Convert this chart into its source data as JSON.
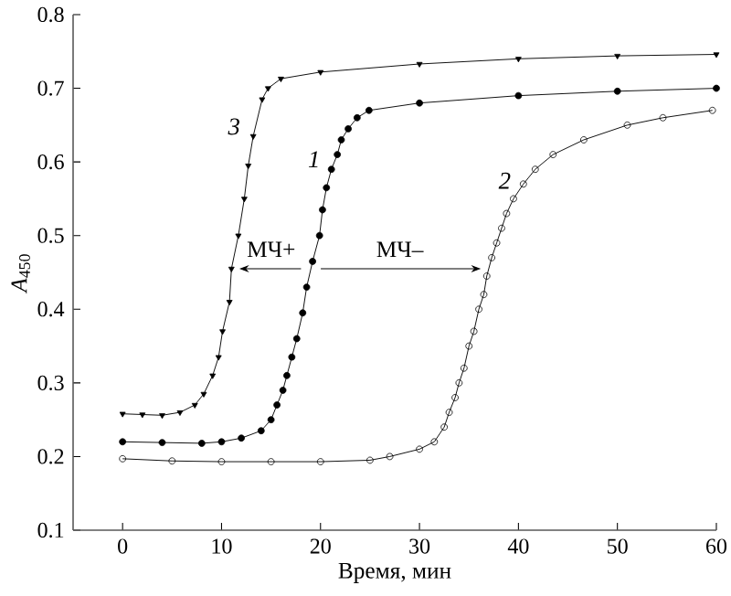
{
  "chart_data": {
    "type": "line",
    "xlabel": "Время, мин",
    "ylabel": "*A*$_{450}$",
    "xlim": [
      -5,
      60
    ],
    "ylim": [
      0.1,
      0.8
    ],
    "xticks": [
      0,
      10,
      20,
      30,
      40,
      50,
      60
    ],
    "yticks": [
      0.1,
      0.2,
      0.3,
      0.4,
      0.5,
      0.6,
      0.7,
      0.8
    ],
    "grid": false,
    "legend": false,
    "line_style": "solid",
    "series": [
      {
        "name": "3",
        "color": "#000000",
        "marker": "triangle",
        "x": [
          0,
          2,
          4,
          5.8,
          7.3,
          8.2,
          9.1,
          9.7,
          10.1,
          10.8,
          11,
          11.7,
          12.3,
          12.7,
          13.2,
          14.1,
          14.7,
          16,
          20,
          30,
          40,
          50,
          60
        ],
        "values": [
          0.258,
          0.257,
          0.256,
          0.26,
          0.27,
          0.285,
          0.31,
          0.335,
          0.37,
          0.41,
          0.455,
          0.5,
          0.55,
          0.595,
          0.635,
          0.685,
          0.7,
          0.713,
          0.722,
          0.733,
          0.74,
          0.744,
          0.746
        ]
      },
      {
        "name": "1",
        "color": "#000000",
        "marker": "circle",
        "x": [
          0,
          4,
          8,
          10,
          12,
          14,
          15,
          15.6,
          16.2,
          16.6,
          17.1,
          17.6,
          18.2,
          18.6,
          19.2,
          19.9,
          20.2,
          20.6,
          21.1,
          21.7,
          22.1,
          22.8,
          23.7,
          24.9,
          30,
          40,
          50,
          60
        ],
        "values": [
          0.22,
          0.219,
          0.218,
          0.22,
          0.225,
          0.235,
          0.25,
          0.27,
          0.29,
          0.31,
          0.335,
          0.36,
          0.395,
          0.43,
          0.465,
          0.5,
          0.535,
          0.565,
          0.59,
          0.61,
          0.63,
          0.645,
          0.66,
          0.67,
          0.68,
          0.69,
          0.696,
          0.7
        ]
      },
      {
        "name": "2",
        "color": "#000000",
        "marker": "open circle",
        "x": [
          0,
          5,
          10,
          15,
          20,
          25,
          27,
          30,
          31.5,
          32.5,
          33,
          33.6,
          34,
          34.5,
          35,
          35.5,
          36,
          36.5,
          36.8,
          37.3,
          37.8,
          38.3,
          38.8,
          39.5,
          40.5,
          41.7,
          43.5,
          46.6,
          51,
          54.6,
          59.6
        ],
        "values": [
          0.197,
          0.194,
          0.193,
          0.193,
          0.193,
          0.195,
          0.2,
          0.21,
          0.22,
          0.24,
          0.26,
          0.28,
          0.3,
          0.32,
          0.35,
          0.37,
          0.4,
          0.42,
          0.445,
          0.47,
          0.49,
          0.51,
          0.53,
          0.55,
          0.57,
          0.59,
          0.61,
          0.63,
          0.65,
          0.66,
          0.67
        ]
      }
    ],
    "annotations": [
      {
        "text": "МЧ+",
        "x": 11,
        "y": 0.455
      },
      {
        "text": "МЧ–",
        "x": 37,
        "y": 0.455
      }
    ]
  }
}
